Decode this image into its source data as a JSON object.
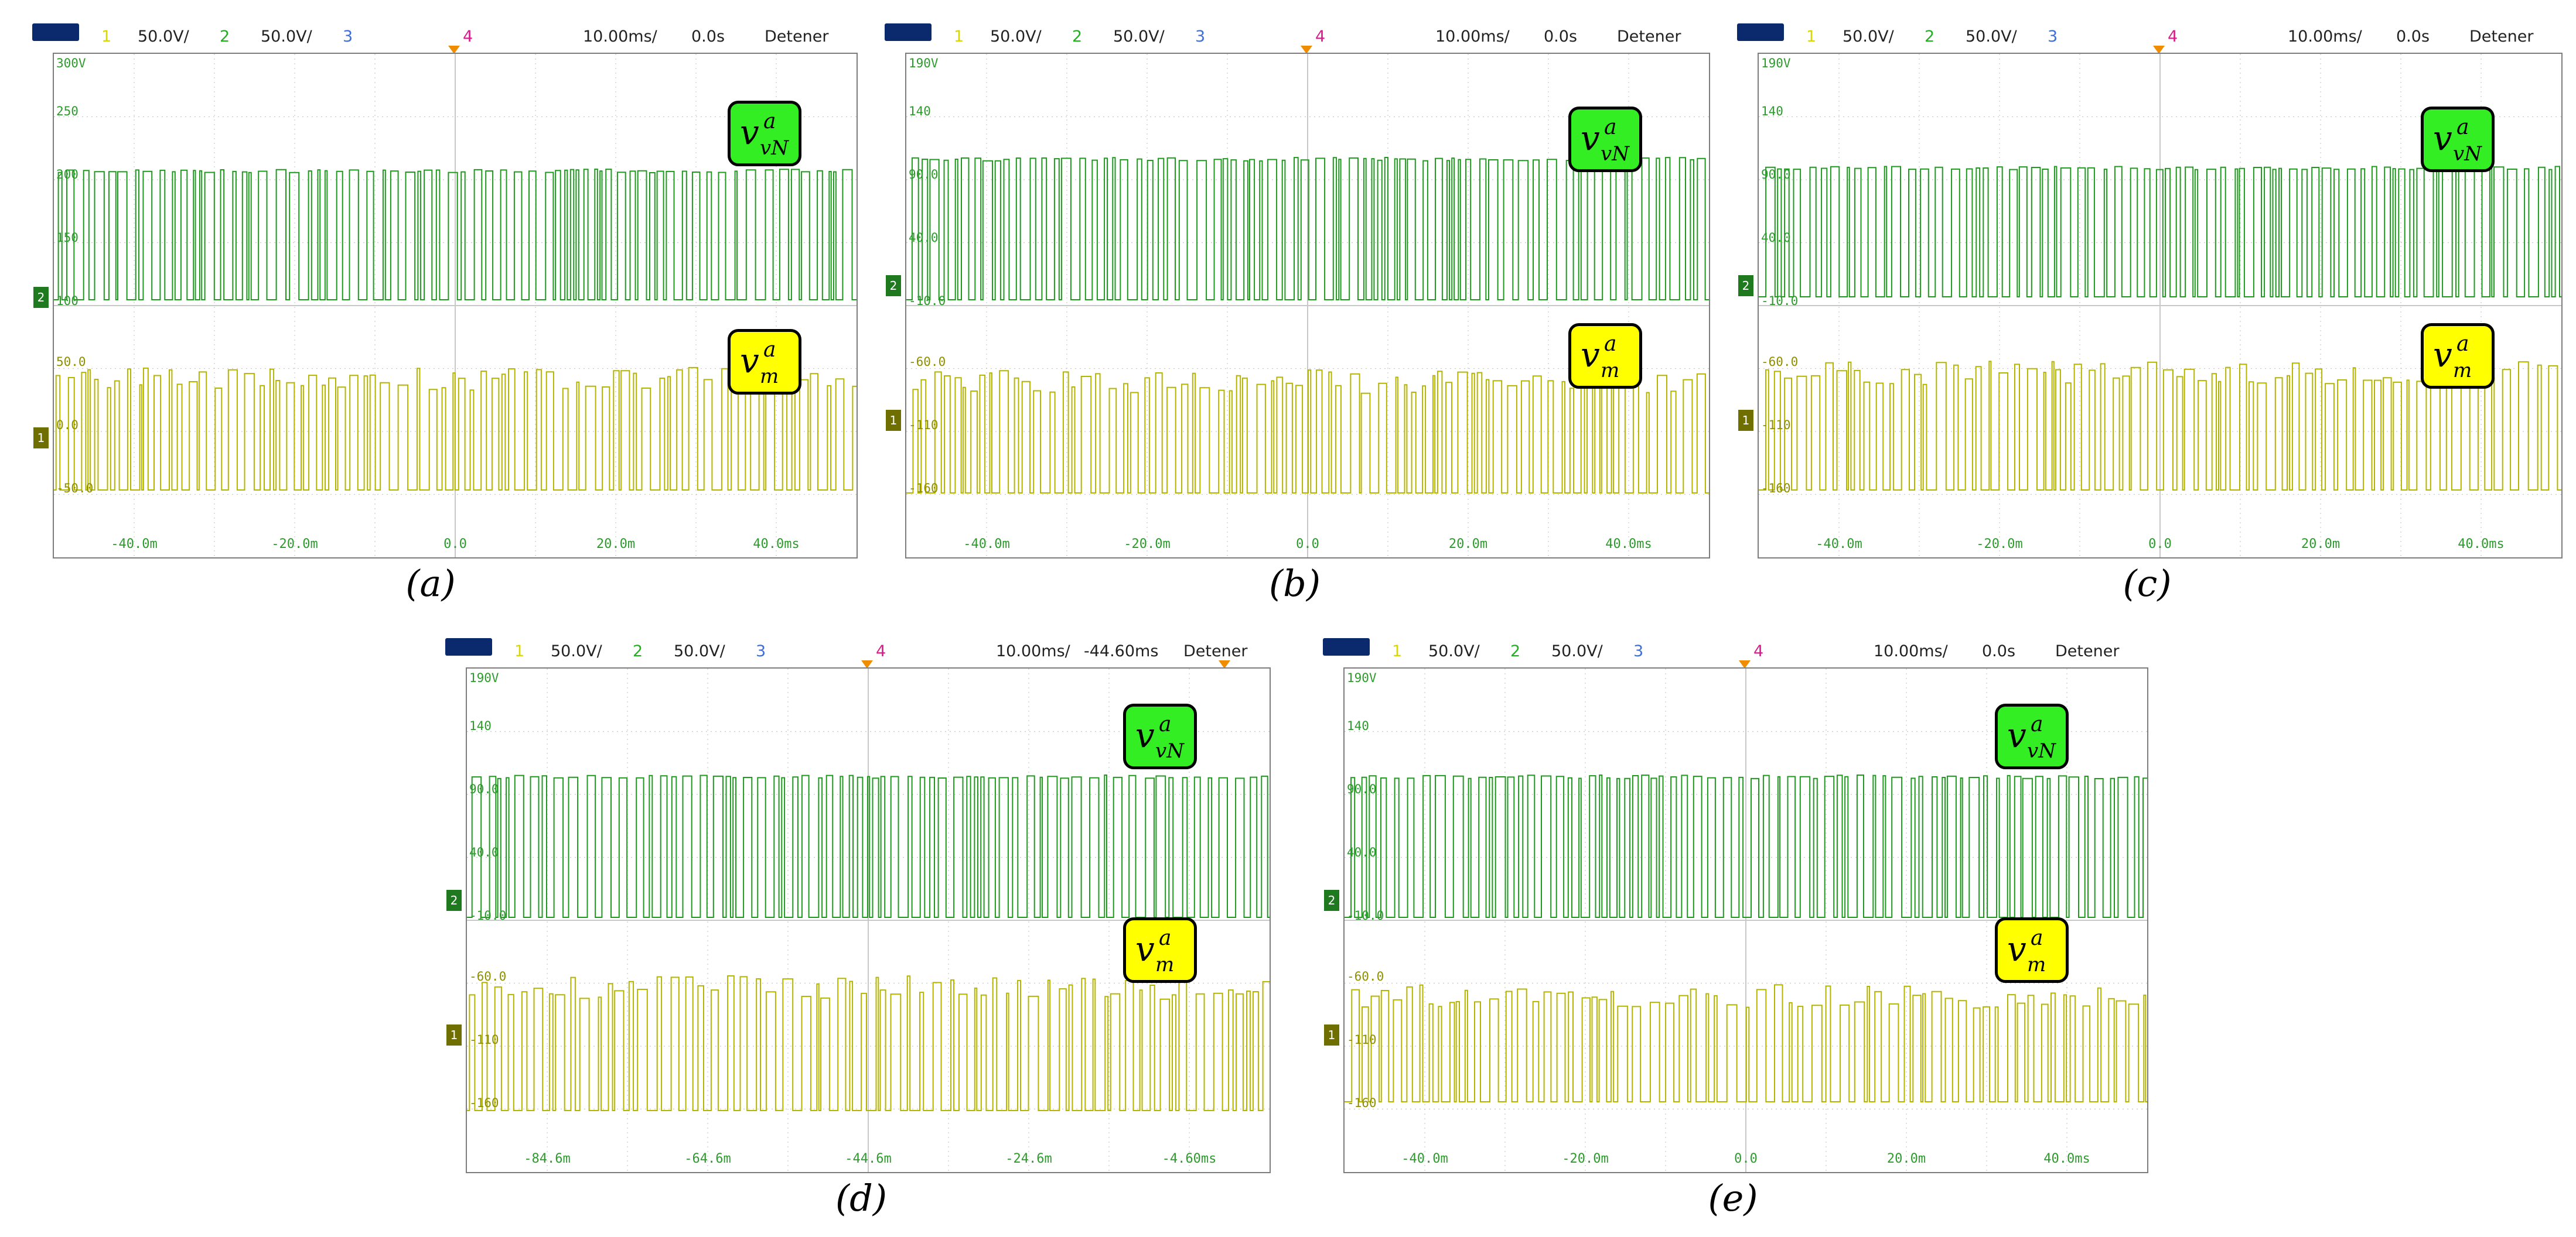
{
  "scopes": [
    {
      "id": "a",
      "caption": "(a)",
      "header": {
        "ch1": "1",
        "ch1_scale": "50.0V/",
        "ch2": "2",
        "ch2_scale": "50.0V/",
        "ch3": "3",
        "ch4": "4",
        "timebase": "10.00ms/",
        "delay": "0.0s",
        "mode": "Detener"
      },
      "y_labels_green": [
        "300V",
        "250",
        "200",
        "150",
        "100"
      ],
      "y_labels_yellow": [
        "50.0",
        "0.0",
        "-50.0"
      ],
      "x_labels": [
        "-40.0m",
        "-20.0m",
        "0.0",
        "20.0m",
        "40.0ms"
      ],
      "top_badge": {
        "v": "v",
        "sup": "a",
        "sub": "vN"
      },
      "bottom_badge": {
        "v": "v",
        "sup": "a",
        "sub": "m"
      },
      "markers": {
        "green": "2",
        "yellow": "1"
      }
    },
    {
      "id": "b",
      "caption": "(b)",
      "header": {
        "ch1": "1",
        "ch1_scale": "50.0V/",
        "ch2": "2",
        "ch2_scale": "50.0V/",
        "ch3": "3",
        "ch4": "4",
        "timebase": "10.00ms/",
        "delay": "0.0s",
        "mode": "Detener"
      },
      "y_labels_green": [
        "190V",
        "140",
        "90.0",
        "40.0",
        "-10.0"
      ],
      "y_labels_yellow": [
        "-60.0",
        "-110",
        "-160"
      ],
      "x_labels": [
        "-40.0m",
        "-20.0m",
        "0.0",
        "20.0m",
        "40.0ms"
      ],
      "top_badge": {
        "v": "v",
        "sup": "a",
        "sub": "vN"
      },
      "bottom_badge": {
        "v": "v",
        "sup": "a",
        "sub": "m"
      },
      "markers": {
        "green": "2",
        "yellow": "1"
      }
    },
    {
      "id": "c",
      "caption": "(c)",
      "header": {
        "ch1": "1",
        "ch1_scale": "50.0V/",
        "ch2": "2",
        "ch2_scale": "50.0V/",
        "ch3": "3",
        "ch4": "4",
        "timebase": "10.00ms/",
        "delay": "0.0s",
        "mode": "Detener"
      },
      "y_labels_green": [
        "190V",
        "140",
        "90.0",
        "40.0",
        "-10.0"
      ],
      "y_labels_yellow": [
        "-60.0",
        "-110",
        "-160"
      ],
      "x_labels": [
        "-40.0m",
        "-20.0m",
        "0.0",
        "20.0m",
        "40.0ms"
      ],
      "top_badge": {
        "v": "v",
        "sup": "a",
        "sub": "vN"
      },
      "bottom_badge": {
        "v": "v",
        "sup": "a",
        "sub": "m"
      },
      "markers": {
        "green": "2",
        "yellow": "1"
      }
    },
    {
      "id": "d",
      "caption": "(d)",
      "header": {
        "ch1": "1",
        "ch1_scale": "50.0V/",
        "ch2": "2",
        "ch2_scale": "50.0V/",
        "ch3": "3",
        "ch4": "4",
        "timebase": "10.00ms/",
        "delay": "-44.60ms",
        "mode": "Detener"
      },
      "y_labels_green": [
        "190V",
        "140",
        "90.0",
        "40.0",
        "-10.0"
      ],
      "y_labels_yellow": [
        "-60.0",
        "-110",
        "-160"
      ],
      "x_labels": [
        "-84.6m",
        "-64.6m",
        "-44.6m",
        "-24.6m",
        "-4.60ms"
      ],
      "top_badge": {
        "v": "v",
        "sup": "a",
        "sub": "vN"
      },
      "bottom_badge": {
        "v": "v",
        "sup": "a",
        "sub": "m"
      },
      "markers": {
        "green": "2",
        "yellow": "1"
      }
    },
    {
      "id": "e",
      "caption": "(e)",
      "header": {
        "ch1": "1",
        "ch1_scale": "50.0V/",
        "ch2": "2",
        "ch2_scale": "50.0V/",
        "ch3": "3",
        "ch4": "4",
        "timebase": "10.00ms/",
        "delay": "0.0s",
        "mode": "Detener"
      },
      "y_labels_green": [
        "190V",
        "140",
        "90.0",
        "40.0",
        "-10.0"
      ],
      "y_labels_yellow": [
        "-60.0",
        "-110",
        "-160"
      ],
      "x_labels": [
        "-40.0m",
        "-20.0m",
        "0.0",
        "20.0m",
        "40.0ms"
      ],
      "top_badge": {
        "v": "v",
        "sup": "a",
        "sub": "vN"
      },
      "bottom_badge": {
        "v": "v",
        "sup": "a",
        "sub": "m"
      },
      "markers": {
        "green": "2",
        "yellow": "1"
      }
    }
  ],
  "colors": {
    "green_trace": "#1f9a1f",
    "yellow_trace": "#b5b500",
    "grid": "#c8c8c8",
    "frame": "#7d7d7d",
    "badge_green": "#33ee22",
    "badge_yellow": "#ffff00"
  }
}
